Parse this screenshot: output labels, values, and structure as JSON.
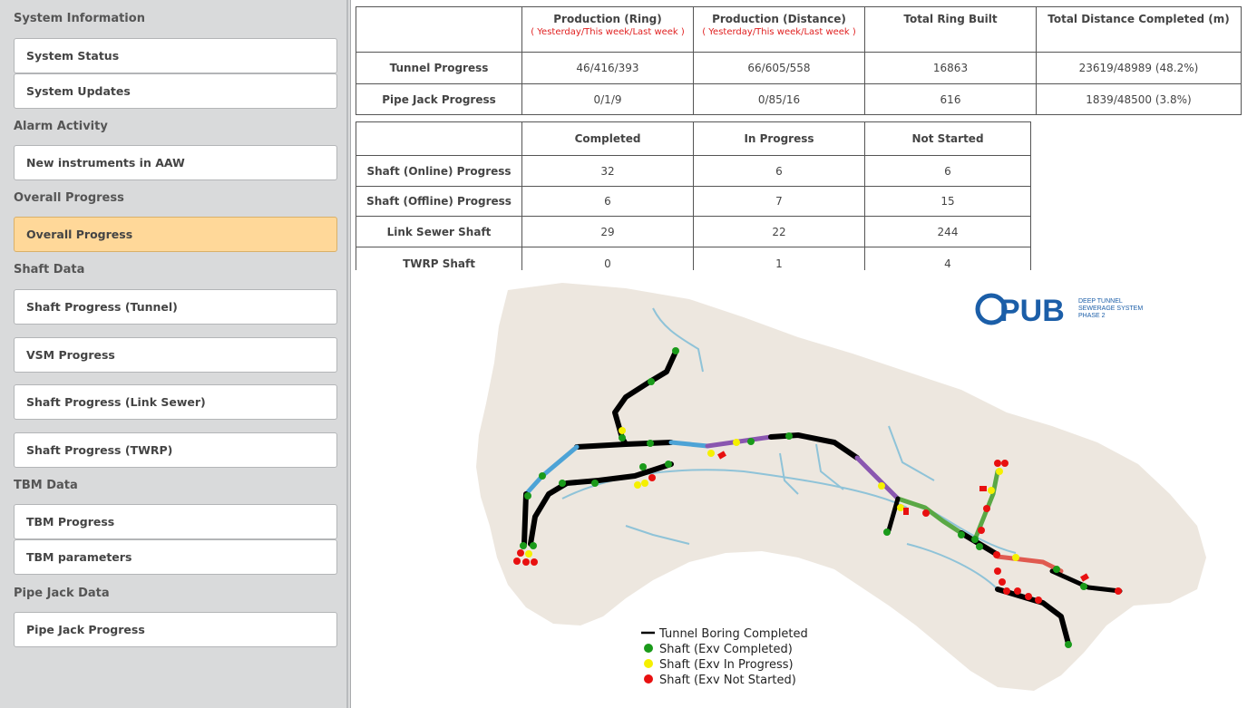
{
  "sidebar": {
    "sections": [
      {
        "title": "System Information",
        "items": [
          "System Status",
          "System Updates"
        ]
      },
      {
        "title": "Alarm Activity",
        "items": [
          "New instruments in AAW"
        ]
      },
      {
        "title": "Overall Progress",
        "items": [
          "Overall Progress"
        ]
      },
      {
        "title": "Shaft Data",
        "items": [
          "Shaft Progress (Tunnel)",
          "VSM Progress",
          "Shaft Progress (Link Sewer)",
          "Shaft Progress (TWRP)"
        ]
      },
      {
        "title": "TBM Data",
        "items": [
          "TBM Progress",
          "TBM parameters"
        ]
      },
      {
        "title": "Pipe Jack Data",
        "items": [
          "Pipe Jack Progress"
        ]
      }
    ],
    "active_item": "Overall Progress"
  },
  "production_table": {
    "headers": [
      "",
      "Production (Ring)",
      "Production (Distance)",
      "Total Ring Built",
      "Total Distance Completed (m)"
    ],
    "subheader": "( Yesterday/This week/Last week )",
    "rows": [
      {
        "label": "Tunnel Progress",
        "ring": "46/416/393",
        "distance": "66/605/558",
        "total_ring": "16863",
        "total_distance": "23619/48989 (48.2%)"
      },
      {
        "label": "Pipe Jack Progress",
        "ring": "0/1/9",
        "distance": "0/85/16",
        "total_ring": "616",
        "total_distance": "1839/48500 (3.8%)"
      }
    ]
  },
  "shaft_table": {
    "headers": [
      "",
      "Completed",
      "In Progress",
      "Not Started"
    ],
    "rows": [
      {
        "label": "Shaft (Online) Progress",
        "completed": "32",
        "in_progress": "6",
        "not_started": "6"
      },
      {
        "label": "Shaft (Offline) Progress",
        "completed": "6",
        "in_progress": "7",
        "not_started": "15"
      },
      {
        "label": "Link Sewer Shaft",
        "completed": "29",
        "in_progress": "22",
        "not_started": "244"
      },
      {
        "label": "TWRP Shaft",
        "completed": "0",
        "in_progress": "1",
        "not_started": "4"
      }
    ]
  },
  "map": {
    "logo_text": "PUB",
    "logo_subtitle": [
      "DEEP TUNNEL",
      "SEWERAGE SYSTEM",
      "PHASE 2"
    ],
    "legend": [
      {
        "label": "Tunnel Boring Completed",
        "color": "#000000",
        "shape": "line"
      },
      {
        "label": "Shaft (Exv Completed)",
        "color": "#1a9a1a",
        "shape": "dot"
      },
      {
        "label": "Shaft (Exv In Progress)",
        "color": "#f5f000",
        "shape": "dot"
      },
      {
        "label": "Shaft (Exv Not Started)",
        "color": "#e81010",
        "shape": "dot"
      }
    ]
  },
  "colors": {
    "active_nav": "#ffd899",
    "sidebar_bg": "#d9dadb",
    "land": "#ede7df",
    "river": "#8fc3d8",
    "tunnel_planned_blue": "#4da3d6",
    "tunnel_purple": "#8a57b0",
    "tunnel_green": "#5aa845",
    "tunnel_red": "#e05a50",
    "logo_blue": "#1b5ea8"
  }
}
